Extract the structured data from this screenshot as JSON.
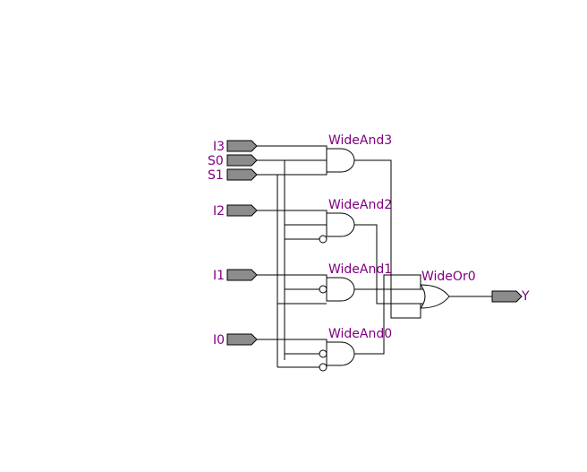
{
  "inputs": {
    "i3": "I3",
    "s0": "S0",
    "s1": "S1",
    "i2": "I2",
    "i1": "I1",
    "i0": "I0"
  },
  "output": {
    "y": "Y"
  },
  "gates": {
    "and3": "WideAnd3",
    "and2": "WideAnd2",
    "and1": "WideAnd1",
    "and0": "WideAnd0",
    "or0": "WideOr0"
  },
  "colors": {
    "label": "#800080",
    "port_fill": "#8c8c8c",
    "wire": "#000000",
    "background": "#ffffff"
  }
}
